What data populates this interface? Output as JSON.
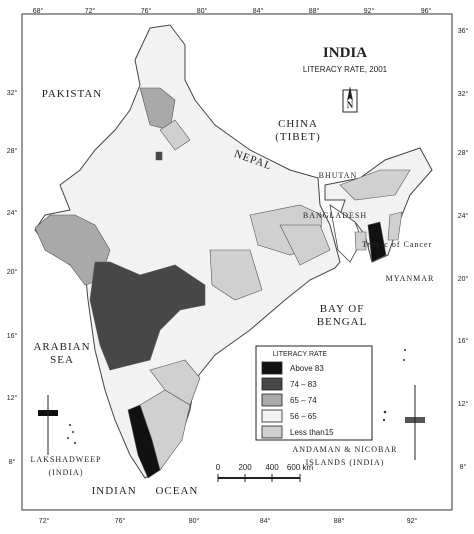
{
  "title": "INDIA",
  "subtitle": "LITERACY RATE, 2001",
  "north": "N",
  "graticule": {
    "top": [
      "68°",
      "72°",
      "76°",
      "80°",
      "84°",
      "88°",
      "92°",
      "96°"
    ],
    "bottom": [
      "72°",
      "76°",
      "80°",
      "84°",
      "88°",
      "92°"
    ],
    "left": [
      "32°",
      "28°",
      "24°",
      "20°",
      "16°",
      "12°",
      "8°"
    ],
    "right": [
      "36°",
      "32°",
      "28°",
      "24°",
      "20°",
      "16°",
      "12°",
      "8°"
    ]
  },
  "labels": {
    "pakistan": [
      "PAKISTAN"
    ],
    "china": [
      "CHINA",
      "(TIBET)"
    ],
    "nepal": [
      "NEPAL"
    ],
    "bhutan": [
      "BHUTAN"
    ],
    "bangladesh": [
      "BANGLADESH"
    ],
    "tropic": [
      "Tropic of Cancer"
    ],
    "myanmar": [
      "MYANMAR"
    ],
    "bay": [
      "BAY OF",
      "BENGAL"
    ],
    "arabian": [
      "ARABIAN",
      "SEA"
    ],
    "ocean": [
      "INDIAN     OCEAN"
    ],
    "lakshadweep": [
      "LAKSHADWEEP",
      "(INDIA)"
    ],
    "andaman": [
      "ANDAMAN & NICOBAR",
      "ISLANDS (INDIA)"
    ]
  },
  "legend": {
    "title": "LITERACY RATE",
    "items": [
      {
        "label": "Above 83",
        "color": "#111111"
      },
      {
        "label": "74 – 83",
        "color": "#474747"
      },
      {
        "label": "65 – 74",
        "color": "#a9a9a9"
      },
      {
        "label": "56 – 65",
        "color": "#f3f3f3"
      },
      {
        "label": "Less than15",
        "color": "#d0d0d0"
      }
    ]
  },
  "scale": [
    "0",
    "200",
    "400",
    "600 km"
  ]
}
